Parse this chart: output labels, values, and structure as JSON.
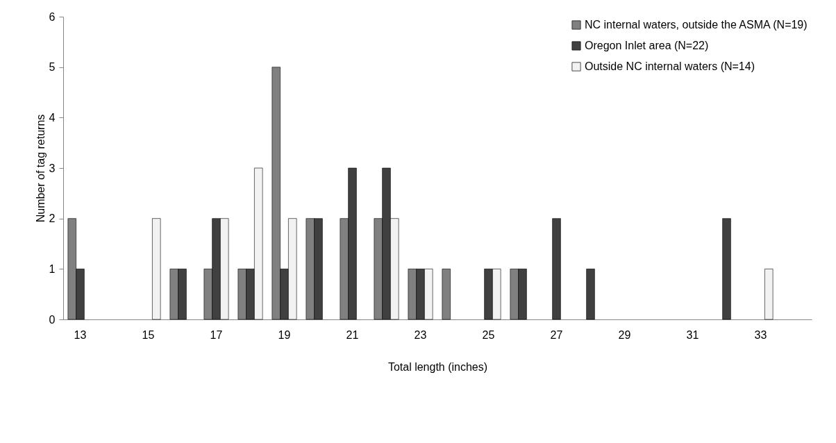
{
  "chart_data": {
    "type": "bar",
    "xlabel": "Total length (inches)",
    "ylabel": "Number of tag returns",
    "categories": [
      "13",
      null,
      "15",
      null,
      "17",
      null,
      "19",
      null,
      "21",
      null,
      "23",
      null,
      "25",
      null,
      "27",
      null,
      "29",
      null,
      "31",
      null,
      "33",
      null
    ],
    "series": [
      {
        "name": "NC internal waters, outside the ASMA (N=19)",
        "color": "#808080",
        "values": [
          2,
          0,
          0,
          1,
          1,
          1,
          5,
          2,
          2,
          2,
          1,
          1,
          0,
          1,
          0,
          0,
          0,
          0,
          0,
          0,
          0,
          0
        ]
      },
      {
        "name": "Oregon Inlet area (N=22)",
        "color": "#404040",
        "values": [
          1,
          0,
          0,
          1,
          2,
          1,
          1,
          2,
          3,
          3,
          1,
          0,
          1,
          1,
          2,
          1,
          0,
          0,
          0,
          2,
          0,
          0
        ]
      },
      {
        "name": "Outside NC internal waters (N=14)",
        "color": "#f2f2f2",
        "values": [
          0,
          0,
          2,
          0,
          2,
          3,
          2,
          0,
          0,
          2,
          1,
          0,
          1,
          0,
          0,
          0,
          0,
          0,
          0,
          0,
          1,
          0
        ]
      }
    ],
    "ylim": [
      0,
      6
    ],
    "yticks": [
      0,
      1,
      2,
      3,
      4,
      5,
      6
    ],
    "grid": false,
    "legend": "top right"
  }
}
